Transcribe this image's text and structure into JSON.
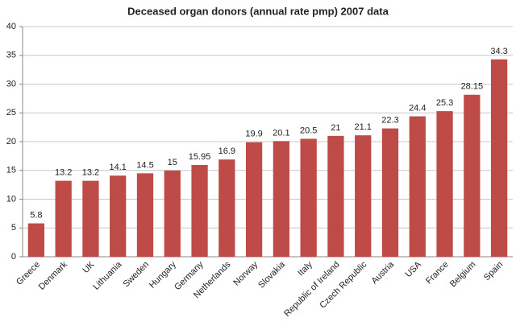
{
  "chart_data": {
    "type": "bar",
    "title": "Deceased organ donors (annual rate pmp) 2007 data",
    "categories": [
      "Greece",
      "Denmark",
      "UK",
      "Lithuania",
      "Sweden",
      "Hungary",
      "Germany",
      "Netherlands",
      "Norway",
      "Slovakia",
      "Italy",
      "Republic of Ireland",
      "Czech Republic",
      "Austria",
      "USA",
      "France",
      "Belgium",
      "Spain"
    ],
    "values": [
      5.8,
      13.2,
      13.2,
      14.1,
      14.5,
      15,
      15.95,
      16.9,
      19.9,
      20.1,
      20.5,
      21,
      21.1,
      22.3,
      24.4,
      25.3,
      28.15,
      34.3
    ],
    "color": "#be4b48",
    "ylim": [
      0,
      40
    ],
    "yticks": [
      0,
      5,
      10,
      15,
      20,
      25,
      30,
      35,
      40
    ],
    "grid": true,
    "data_labels": true
  }
}
